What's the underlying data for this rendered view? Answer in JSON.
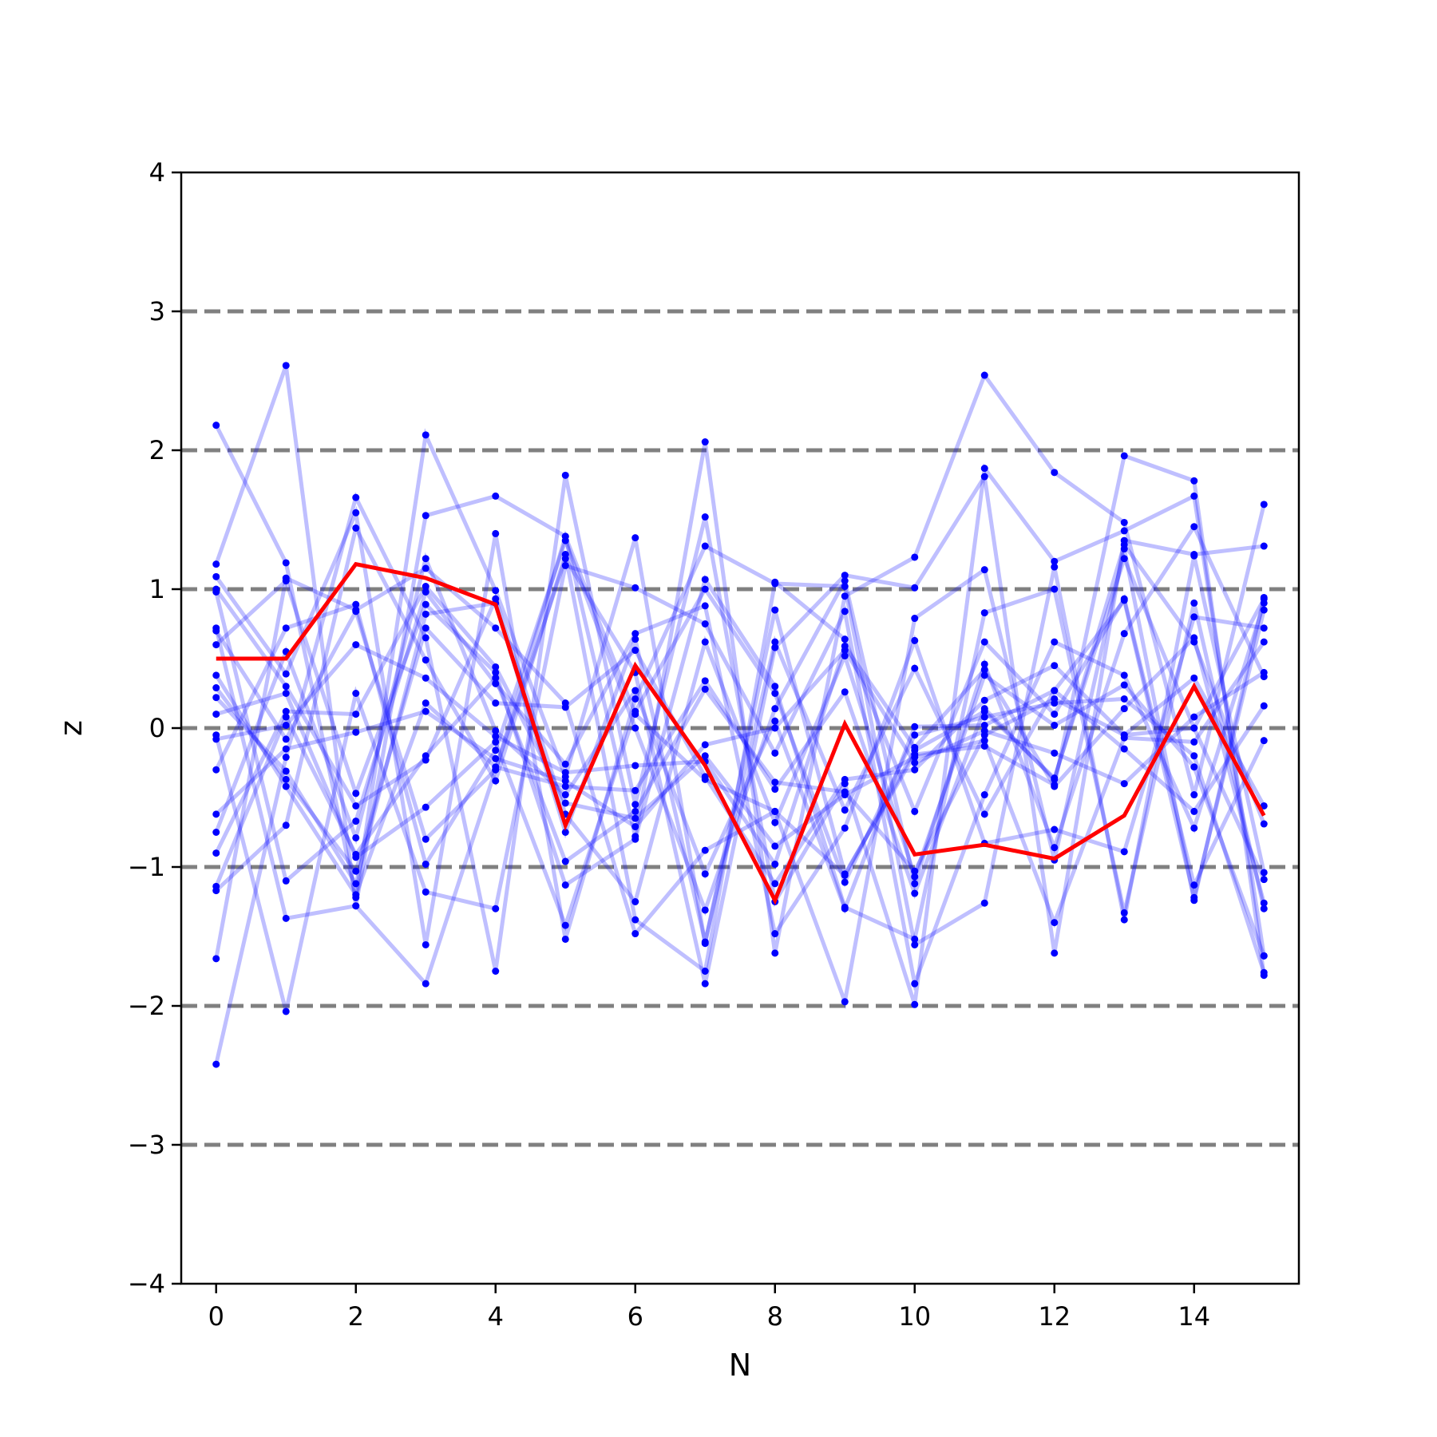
{
  "chart_data": {
    "type": "line",
    "title": "",
    "xlabel": "N",
    "ylabel": "z",
    "xlim": [
      -0.5,
      15.5
    ],
    "ylim": [
      -4,
      4
    ],
    "xticks": [
      0,
      2,
      4,
      6,
      8,
      10,
      12,
      14
    ],
    "yticks": [
      -4,
      -3,
      -2,
      -1,
      0,
      1,
      2,
      3,
      4
    ],
    "ytick_labels": [
      "−4",
      "−3",
      "−2",
      "−1",
      "0",
      "1",
      "2",
      "3",
      "4"
    ],
    "reference_lines": {
      "y": [
        -3,
        -2,
        -1,
        0,
        1,
        2,
        3
      ],
      "style": "dashed",
      "color": "#808080"
    },
    "grid": false,
    "legend": "none",
    "colors": {
      "samples": "#0000ff",
      "mean": "#ff0000"
    },
    "x": [
      0,
      1,
      2,
      3,
      4,
      5,
      6,
      7,
      8,
      9,
      10,
      11,
      12,
      13,
      14,
      15
    ],
    "series": [
      {
        "role": "sample",
        "values": [
          2.18,
          1.19,
          -1.22,
          2.11,
          0.99,
          -0.35,
          1.37,
          -1.55,
          0.85,
          -1.05,
          -0.19,
          -0.13,
          -0.41,
          1.96,
          1.78,
          -1.78
        ]
      },
      {
        "role": "sample",
        "values": [
          1.18,
          2.61,
          -1.28,
          1.53,
          1.67,
          1.38,
          -0.78,
          2.06,
          -1.62,
          0.95,
          1.23,
          2.54,
          1.84,
          1.48,
          -0.48,
          1.61
        ]
      },
      {
        "role": "sample",
        "values": [
          -2.42,
          -0.21,
          1.66,
          0.65,
          -1.75,
          1.82,
          -0.55,
          1.52,
          -1.25,
          -0.4,
          -1.99,
          1.87,
          1.2,
          1.42,
          1.67,
          -1.64
        ]
      },
      {
        "role": "sample",
        "values": [
          0.72,
          -1.37,
          -1.28,
          -1.84,
          -0.3,
          1.22,
          0.4,
          -1.84,
          0.58,
          1.1,
          1.01,
          1.81,
          -1.62,
          1.35,
          1.25,
          1.31
        ]
      },
      {
        "role": "sample",
        "values": [
          1.09,
          0.39,
          1.55,
          -1.56,
          1.4,
          -1.52,
          0.21,
          1.31,
          1.04,
          1.02,
          -1.56,
          -1.26,
          1.16,
          -1.38,
          1.24,
          -1.04
        ]
      },
      {
        "role": "sample",
        "values": [
          -1.66,
          1.08,
          0.85,
          1.15,
          0.72,
          0.18,
          -1.48,
          -0.88,
          -0.6,
          -1.97,
          0.79,
          1.14,
          -0.95,
          1.29,
          -1.24,
          0.94
        ]
      },
      {
        "role": "sample",
        "values": [
          -0.05,
          -2.04,
          0.25,
          -1.18,
          -1.3,
          1.17,
          1.01,
          0.75,
          -0.18,
          0.84,
          -1.84,
          -0.48,
          0.62,
          0.38,
          -0.72,
          0.9
        ]
      },
      {
        "role": "sample",
        "values": [
          0.6,
          1.06,
          -0.47,
          0.89,
          0.4,
          -1.13,
          -0.8,
          1.07,
          0.3,
          -1.29,
          -1.52,
          0.83,
          1.0,
          -1.33,
          0.9,
          -1.3
        ]
      },
      {
        "role": "sample",
        "values": [
          -1.17,
          -0.7,
          1.44,
          0.49,
          -0.38,
          1.25,
          -1.38,
          -1.75,
          1.05,
          0.64,
          -0.6,
          0.62,
          0.1,
          0.93,
          -1.13,
          -0.09
        ]
      },
      {
        "role": "sample",
        "values": [
          0.98,
          -1.1,
          -0.67,
          0.98,
          0.32,
          -0.26,
          0.68,
          0.88,
          -1.48,
          -0.72,
          0.63,
          -0.83,
          -0.73,
          -0.89,
          0.8,
          0.72
        ]
      },
      {
        "role": "sample",
        "values": [
          -0.3,
          0.72,
          0.89,
          -0.98,
          -0.16,
          1.35,
          0.0,
          -1.31,
          0.14,
          1.06,
          -1.12,
          0.46,
          -0.86,
          0.68,
          1.45,
          0.37
        ]
      },
      {
        "role": "sample",
        "values": [
          0.22,
          -0.31,
          -1.12,
          0.82,
          0.9,
          -0.75,
          0.64,
          -1.54,
          0.62,
          -0.59,
          0.43,
          -0.62,
          0.27,
          0.92,
          -1.22,
          0.85
        ]
      },
      {
        "role": "sample",
        "values": [
          1.0,
          0.3,
          -0.56,
          -0.23,
          0.93,
          -0.62,
          -1.25,
          0.62,
          -0.68,
          0.52,
          -1.07,
          0.38,
          0.02,
          0.31,
          -0.28,
          -1.64
        ]
      },
      {
        "role": "sample",
        "values": [
          -0.75,
          0.55,
          -0.79,
          1.22,
          -0.02,
          -0.48,
          0.27,
          -1.05,
          0.05,
          -1.3,
          0.01,
          0.02,
          0.27,
          -0.15,
          -0.6,
          0.16
        ]
      },
      {
        "role": "sample",
        "values": [
          0.38,
          -0.42,
          -1.2,
          0.18,
          -0.28,
          -0.42,
          -0.45,
          0.34,
          -0.44,
          0.26,
          -1.19,
          0.14,
          -0.37,
          1.32,
          0.62,
          -0.69
        ]
      },
      {
        "role": "sample",
        "values": [
          -0.9,
          0.12,
          0.1,
          1.02,
          0.44,
          -0.54,
          -0.65,
          -0.2,
          -0.85,
          -0.48,
          -0.21,
          -0.09,
          -1.4,
          -0.07,
          -0.1,
          0.62
        ]
      },
      {
        "role": "sample",
        "values": [
          0.1,
          0.25,
          -0.93,
          -0.57,
          -0.1,
          -1.42,
          0.12,
          1.0,
          0.25,
          -1.11,
          -0.05,
          0.08,
          0.18,
          0.21,
          -0.2,
          -1.76
        ]
      },
      {
        "role": "sample",
        "values": [
          -0.62,
          -0.15,
          -0.03,
          0.12,
          -0.22,
          -0.38,
          -0.71,
          -0.12,
          0.0,
          0.56,
          -0.25,
          -0.02,
          -0.18,
          -0.4,
          0.08,
          0.4
        ]
      },
      {
        "role": "sample",
        "values": [
          0.29,
          -0.37,
          -1.03,
          0.72,
          0.18,
          0.15,
          0.56,
          -0.35,
          -1.12,
          -0.37,
          -0.3,
          0.2,
          0.45,
          -0.05,
          0.36,
          -0.56
        ]
      },
      {
        "role": "sample",
        "values": [
          -0.08,
          0.02,
          0.6,
          0.36,
          -0.06,
          -0.32,
          -0.27,
          -0.24,
          -0.98,
          0.59,
          -0.14,
          0.42,
          -0.42,
          0.14,
          0.65,
          -1.26
        ]
      },
      {
        "role": "sample",
        "values": [
          -1.14,
          0.08,
          -0.91,
          -0.2,
          0.36,
          -0.96,
          -0.6,
          0.28,
          -0.39,
          -0.46,
          -1.03,
          -0.05,
          0.21,
          -0.05,
          0.0,
          -1.09
        ]
      },
      {
        "role": "sample",
        "values": [
          0.7,
          -0.08,
          0.84,
          -0.8,
          -0.3,
          1.38,
          0.1,
          -0.37,
          -0.6,
          -1.06,
          -0.16,
          0.12,
          -0.36,
          1.22,
          -0.0,
          0.93
        ]
      }
    ],
    "mean_series": {
      "role": "mean",
      "values": [
        0.5,
        0.5,
        1.18,
        1.08,
        0.89,
        -0.7,
        0.45,
        -0.27,
        -1.24,
        0.03,
        -0.91,
        -0.84,
        -0.94,
        -0.63,
        0.3,
        -0.63
      ]
    }
  }
}
